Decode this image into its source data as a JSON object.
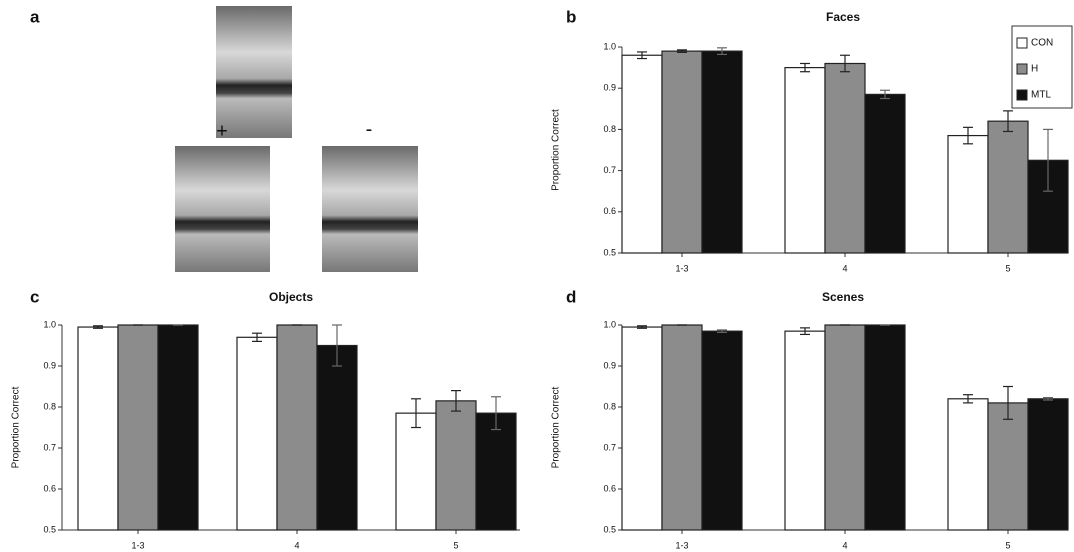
{
  "panel_a": {
    "label": "a",
    "plus": "+",
    "minus": "-"
  },
  "chart_data": [
    {
      "type": "bar",
      "panel_label": "b",
      "title": "Faces",
      "ylabel": "Proportion Correct",
      "categories": [
        "1-3",
        "4",
        "5"
      ],
      "series": [
        {
          "name": "CON",
          "color": "#ffffff",
          "values": [
            0.98,
            0.95,
            0.785
          ],
          "errors": [
            0.008,
            0.01,
            0.02
          ]
        },
        {
          "name": "H",
          "color": "#8c8c8c",
          "values": [
            0.99,
            0.96,
            0.82
          ],
          "errors": [
            0.003,
            0.02,
            0.025
          ]
        },
        {
          "name": "MTL",
          "color": "#111111",
          "values": [
            0.99,
            0.885,
            0.725
          ],
          "errors": [
            0.008,
            0.01,
            0.075
          ]
        }
      ],
      "ylim": [
        0.5,
        1
      ],
      "yticks": [
        0.5,
        0.6,
        0.7,
        0.8,
        0.9,
        {
          "value": 1,
          "label": "1.0"
        }
      ],
      "legend": "upper right"
    },
    {
      "type": "bar",
      "panel_label": "c",
      "title": "Objects",
      "ylabel": "Proportion Correct",
      "categories": [
        "1-3",
        "4",
        "5"
      ],
      "series": [
        {
          "name": "CON",
          "color": "#ffffff",
          "values": [
            0.995,
            0.97,
            0.785
          ],
          "errors": [
            0.003,
            0.01,
            0.035
          ]
        },
        {
          "name": "H",
          "color": "#8c8c8c",
          "values": [
            1,
            1,
            0.815
          ],
          "errors": [
            0,
            0,
            0.025
          ]
        },
        {
          "name": "MTL",
          "color": "#111111",
          "values": [
            1,
            0.95,
            0.785
          ],
          "errors": [
            0,
            0.05,
            0.04
          ]
        }
      ],
      "ylim": [
        0.5,
        1
      ],
      "yticks": [
        0.5,
        0.6,
        0.7,
        0.8,
        0.9,
        {
          "value": 1,
          "label": "1.0"
        }
      ]
    },
    {
      "type": "bar",
      "panel_label": "d",
      "title": "Scenes",
      "ylabel": "Proportion Correct",
      "categories": [
        "1-3",
        "4",
        "5"
      ],
      "series": [
        {
          "name": "CON",
          "color": "#ffffff",
          "values": [
            0.995,
            0.985,
            0.82
          ],
          "errors": [
            0.003,
            0.008,
            0.01
          ]
        },
        {
          "name": "H",
          "color": "#8c8c8c",
          "values": [
            1,
            1,
            0.81
          ],
          "errors": [
            0,
            0,
            0.04
          ]
        },
        {
          "name": "MTL",
          "color": "#111111",
          "values": [
            0.985,
            1,
            0.82
          ],
          "errors": [
            0.003,
            0,
            0.003
          ]
        }
      ],
      "ylim": [
        0.5,
        1
      ],
      "yticks": [
        0.5,
        0.6,
        0.7,
        0.8,
        0.9,
        {
          "value": 1,
          "label": "1.0"
        }
      ]
    }
  ]
}
